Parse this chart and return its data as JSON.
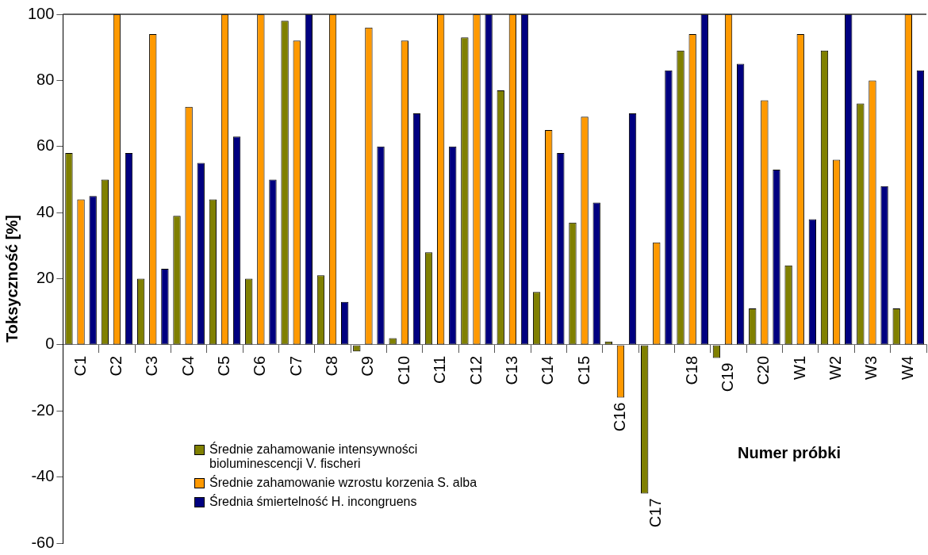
{
  "chart_data": {
    "type": "bar",
    "ylabel": "Toksyczność [%]",
    "xlabel": "Numer próbki",
    "categories": [
      "C1",
      "C2",
      "C3",
      "C4",
      "C5",
      "C6",
      "C7",
      "C8",
      "C9",
      "C10",
      "C11",
      "C12",
      "C13",
      "C14",
      "C15",
      "C16",
      "C17",
      "C18",
      "C19",
      "C20",
      "W1",
      "W2",
      "W3",
      "W4"
    ],
    "series": [
      {
        "name": "Średnie zahamowanie intensywności bioluminescencji V. fischeri",
        "color": "#808000",
        "values": [
          58,
          50,
          20,
          39,
          44,
          20,
          98,
          21,
          -2,
          2,
          28,
          93,
          77,
          16,
          37,
          1,
          -45,
          89,
          -4,
          11,
          24,
          89,
          73,
          11
        ]
      },
      {
        "name": "Średnie zahamowanie wzrostu korzenia S. alba",
        "color": "#ff9900",
        "values": [
          44,
          100,
          94,
          72,
          100,
          100,
          92,
          100,
          96,
          92,
          100,
          100,
          100,
          65,
          69,
          -16,
          31,
          94,
          100,
          74,
          94,
          56,
          80,
          100
        ]
      },
      {
        "name": "Średnia śmiertelność H. incongruens",
        "color": "#000080",
        "values": [
          45,
          58,
          23,
          55,
          63,
          50,
          100,
          13,
          60,
          70,
          60,
          100,
          100,
          58,
          43,
          70,
          83,
          100,
          85,
          53,
          38,
          100,
          48,
          83
        ]
      }
    ],
    "ylim": [
      -60,
      100
    ],
    "yticks": [
      -60,
      -40,
      -20,
      0,
      20,
      40,
      60,
      80,
      100
    ],
    "grid": false,
    "legend": "bottom left"
  }
}
